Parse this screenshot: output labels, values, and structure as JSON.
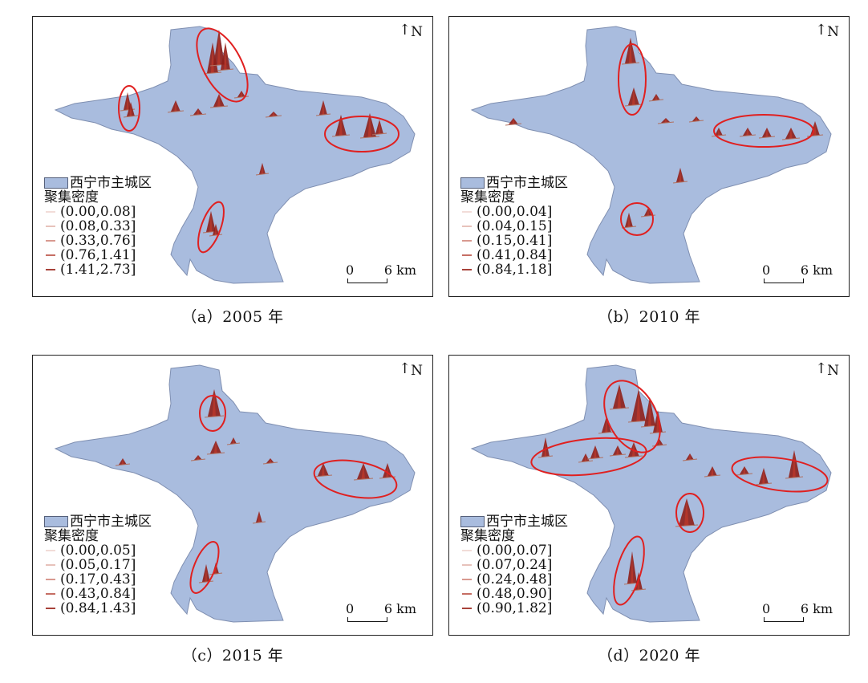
{
  "colors": {
    "region": "#a9bcde",
    "region_stroke": "#7f8fb1",
    "spike": "#8e1f1a",
    "spike_light": "#c0392b",
    "ellipse": "#e02020"
  },
  "panels": [
    {
      "caption": "（a）2005 年",
      "north": "N",
      "legend_region": "西宁市主城区",
      "legend_title": "聚集密度",
      "classes": [
        "(0.00,0.08]",
        "(0.08,0.33]",
        "(0.33,0.76]",
        "(0.76,1.41]",
        "(1.41,2.73]"
      ],
      "scale_zero": "0",
      "scale_label": "6 km"
    },
    {
      "caption": "（b）2010 年",
      "north": "N",
      "legend_region": "西宁市主城区",
      "legend_title": "聚集密度",
      "classes": [
        "(0.00,0.04]",
        "(0.04,0.15]",
        "(0.15,0.41]",
        "(0.41,0.84]",
        "(0.84,1.18]"
      ],
      "scale_zero": "0",
      "scale_label": "6 km"
    },
    {
      "caption": "（c）2015 年",
      "north": "N",
      "legend_region": "西宁市主城区",
      "legend_title": "聚集密度",
      "classes": [
        "(0.00,0.05]",
        "(0.05,0.17]",
        "(0.17,0.43]",
        "(0.43,0.84]",
        "(0.84,1.43]"
      ],
      "scale_zero": "0",
      "scale_label": "6 km"
    },
    {
      "caption": "（d）2020 年",
      "north": "N",
      "legend_region": "西宁市主城区",
      "legend_title": "聚集密度",
      "classes": [
        "(0.00,0.07]",
        "(0.07,0.24]",
        "(0.24,0.48]",
        "(0.48,0.90]",
        "(0.90,1.82]"
      ],
      "scale_zero": "0",
      "scale_label": "6 km"
    }
  ]
}
